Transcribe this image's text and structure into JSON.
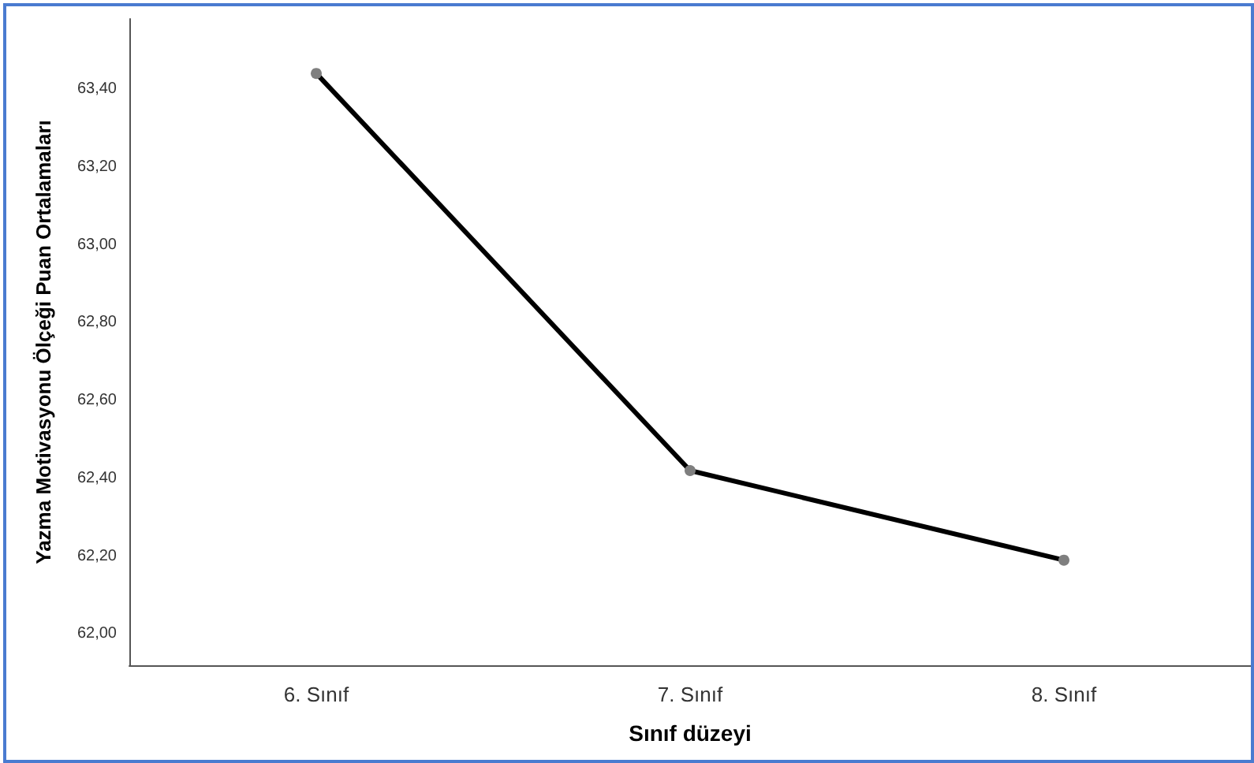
{
  "chart_data": {
    "type": "line",
    "xlabel": "Sınıf düzeyi",
    "ylabel": "Yazma Motivasyonu Ölçeği Puan Ortalamaları",
    "categories": [
      "6. Sınıf",
      "7. Sınıf",
      "8. Sınıf"
    ],
    "series": [
      {
        "color": "#000000",
        "values": [
          63.44,
          62.42,
          62.19
        ]
      }
    ],
    "ylim": [
      61.92,
      63.58
    ],
    "yticks": [
      {
        "value": 62.0,
        "label": "62,00"
      },
      {
        "value": 62.2,
        "label": "62,20"
      },
      {
        "value": 62.4,
        "label": "62,40"
      },
      {
        "value": 62.6,
        "label": "62,60"
      },
      {
        "value": 62.8,
        "label": "62,80"
      },
      {
        "value": 63.0,
        "label": "63,00"
      },
      {
        "value": 63.2,
        "label": "63,20"
      },
      {
        "value": 63.4,
        "label": "63,40"
      }
    ],
    "marker": "circle",
    "line_style": "solid",
    "grid": false
  }
}
